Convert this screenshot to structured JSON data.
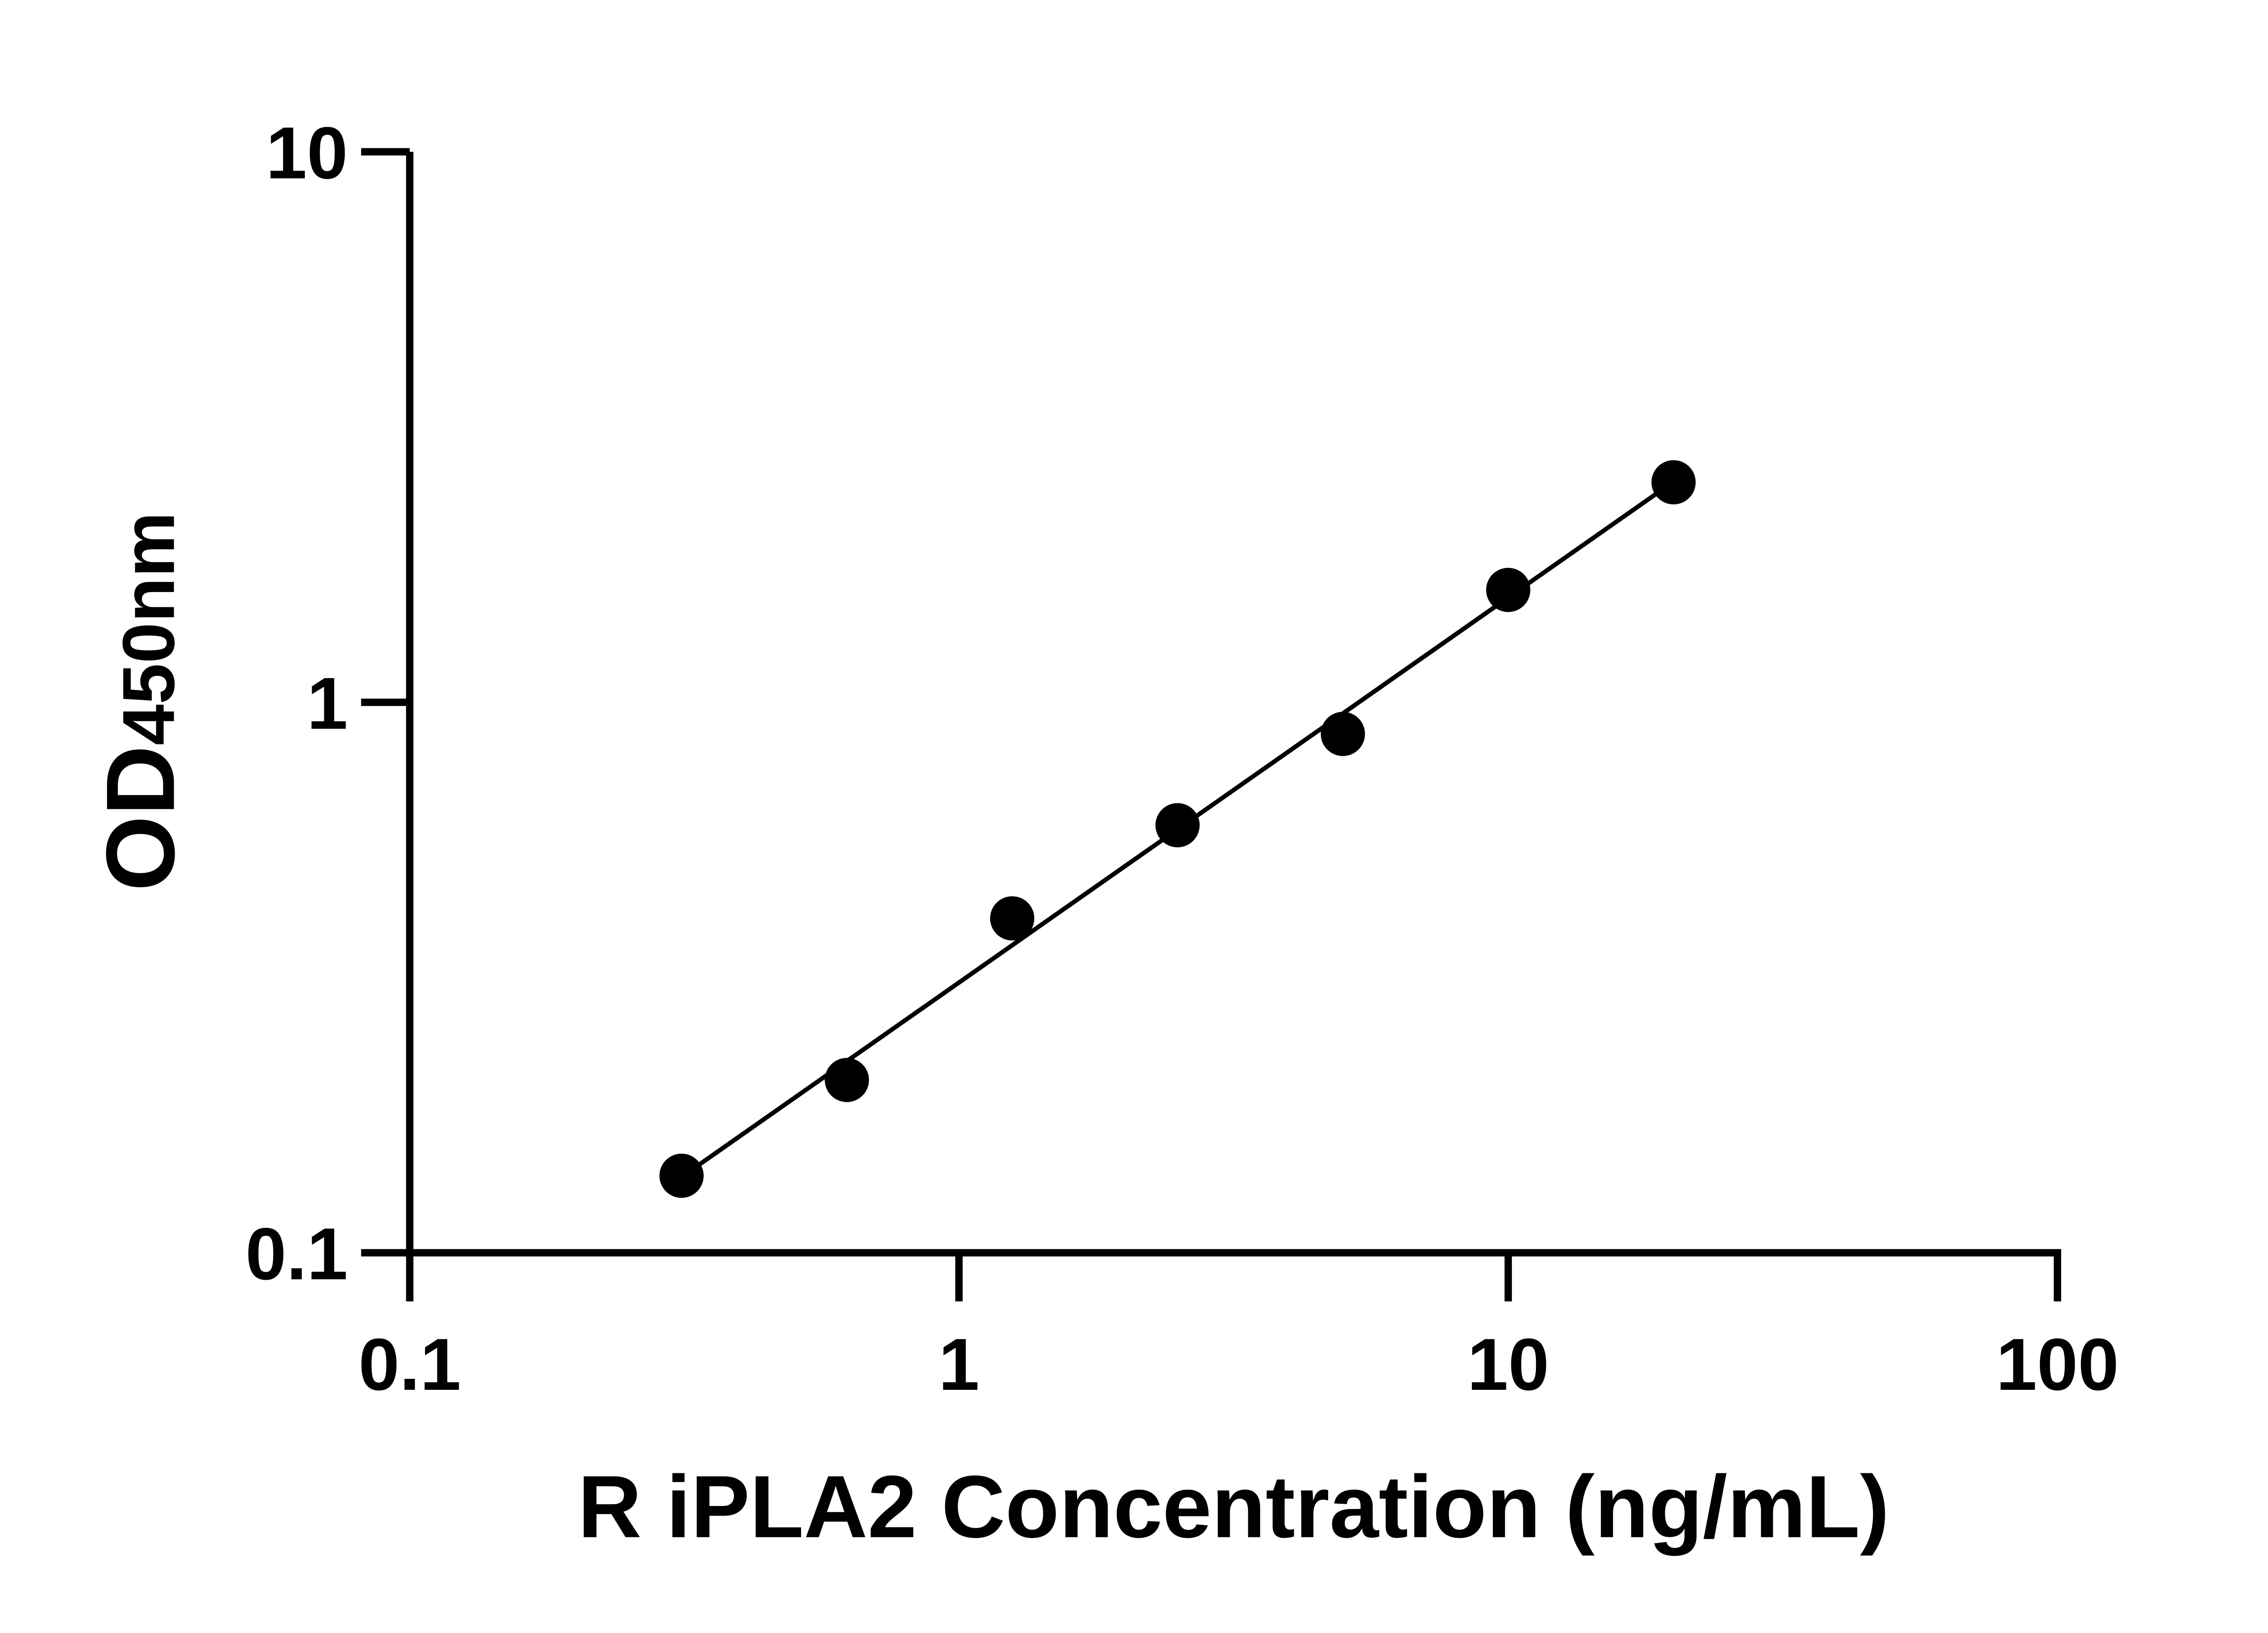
{
  "chart_data": {
    "type": "scatter",
    "title": "",
    "xlabel": "R iPLA2 Concentration (ng/mL)",
    "ylabel": {
      "main": "OD",
      "sub": "450nm"
    },
    "xscale": "log",
    "yscale": "log",
    "xlim": [
      0.1,
      100
    ],
    "ylim": [
      0.1,
      10
    ],
    "xticks": [
      0.1,
      1,
      10,
      100
    ],
    "xtick_labels": [
      "0.1",
      "1",
      "10",
      "100"
    ],
    "yticks": [
      0.1,
      1,
      10
    ],
    "ytick_labels": [
      "0.1",
      "1",
      "10"
    ],
    "grid": false,
    "series": [
      {
        "x": [
          0.3125,
          0.625,
          1.25,
          2.5,
          5,
          10,
          20
        ],
        "y": [
          0.138,
          0.206,
          0.405,
          0.598,
          0.876,
          1.6,
          2.51
        ],
        "marker": "filled-circle",
        "fit_line": "linear in log-log",
        "color": "#000000"
      }
    ]
  }
}
